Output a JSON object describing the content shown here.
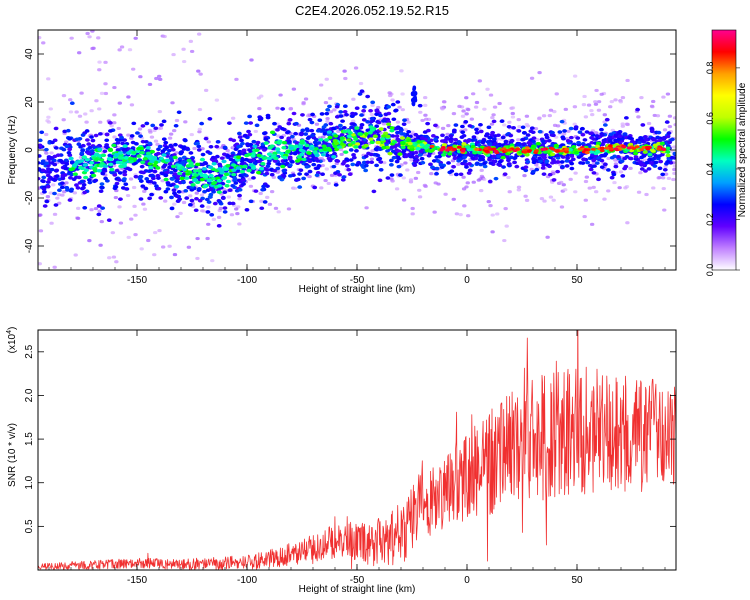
{
  "page": {
    "title": "C2E4.2026.052.19.52.R15"
  },
  "chart_data": [
    {
      "type": "heatmap",
      "name": "spectrogram",
      "xlabel": "Height of straight line (km)",
      "ylabel": "Frequency (Hz)",
      "xlim": [
        -195,
        95
      ],
      "ylim": [
        -50,
        50
      ],
      "xticks": [
        -150,
        -100,
        -50,
        0,
        50
      ],
      "yticks": [
        -40,
        -20,
        0,
        20,
        40
      ],
      "ridge": {
        "x": [
          -195,
          -170,
          -150,
          -130,
          -115,
          -100,
          -85,
          -70,
          -55,
          -45,
          -35,
          -25,
          -15,
          0,
          25,
          50,
          75,
          95
        ],
        "freq": [
          -8,
          -5,
          -3,
          -8,
          -12,
          -5,
          0,
          1,
          4,
          6,
          4,
          2,
          1,
          0,
          0,
          0,
          1,
          0
        ]
      },
      "echo": {
        "x": -24,
        "freq": 23
      },
      "colorbar": {
        "label": "Normalized spectral amplitude",
        "ticks": [
          "0.0",
          "0.2",
          "0.4",
          "0.6",
          "0.8"
        ],
        "tick_values": [
          0.0,
          0.2,
          0.4,
          0.6,
          0.8
        ],
        "range": [
          0,
          0.95
        ],
        "colors": [
          "#ffffff",
          "#c080ff",
          "#6000ff",
          "#0000ff",
          "#00a0ff",
          "#00ffc0",
          "#00ff00",
          "#c0ff00",
          "#ffff00",
          "#ffa000",
          "#ff0000",
          "#ff0090"
        ]
      }
    },
    {
      "type": "line",
      "name": "snr",
      "xlabel": "Height of straight line (km)",
      "ylabel": "SNR (10 * v/v)",
      "multiplier": "(x10",
      "multiplier_exp": "4",
      "multiplier_close": ")",
      "xlim": [
        -195,
        95
      ],
      "ylim": [
        0,
        2.75
      ],
      "xticks": [
        -150,
        -100,
        -50,
        0,
        50
      ],
      "yticks": [
        0.5,
        1.0,
        1.5,
        2.0,
        2.5
      ],
      "ytick_labels": [
        "0.5",
        "1.0",
        "1.5",
        "2.0",
        "2.5"
      ],
      "line_color": "#f03030",
      "trend": {
        "x": [
          -195,
          -170,
          -150,
          -130,
          -110,
          -95,
          -80,
          -65,
          -55,
          -45,
          -35,
          -28,
          -22,
          -15,
          -5,
          5,
          15,
          25,
          40,
          55,
          70,
          85,
          95
        ],
        "y": [
          0.03,
          0.06,
          0.08,
          0.06,
          0.08,
          0.1,
          0.18,
          0.3,
          0.35,
          0.3,
          0.35,
          0.45,
          0.7,
          0.85,
          1.0,
          1.15,
          1.3,
          1.45,
          1.55,
          1.6,
          1.55,
          1.55,
          1.5
        ]
      },
      "amplitude": {
        "x": [
          -195,
          -100,
          -50,
          -30,
          0,
          20,
          50,
          95
        ],
        "y": [
          0.04,
          0.08,
          0.22,
          0.35,
          0.5,
          0.7,
          0.75,
          0.6
        ]
      }
    }
  ]
}
